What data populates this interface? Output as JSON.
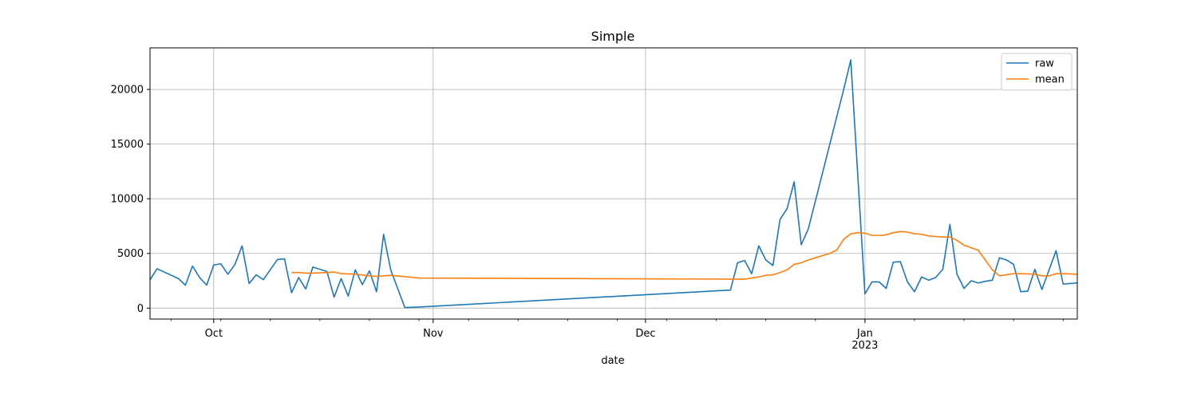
{
  "chart_data": {
    "type": "line",
    "title": "Simple",
    "xlabel": "date",
    "ylabel": "",
    "xlim": [
      "2022-09-22",
      "2023-01-31"
    ],
    "ylim": [
      -1000,
      23800
    ],
    "grid": true,
    "legend_placement": "top-right",
    "x_major_ticks": [
      {
        "date": "2022-10-01",
        "label": "Oct",
        "sublabel": ""
      },
      {
        "date": "2022-11-01",
        "label": "Nov",
        "sublabel": ""
      },
      {
        "date": "2022-12-01",
        "label": "Dec",
        "sublabel": ""
      },
      {
        "date": "2023-01-01",
        "label": "Jan",
        "sublabel": "2023"
      }
    ],
    "y_ticks": [
      {
        "value": 0,
        "label": "0"
      },
      {
        "value": 5000,
        "label": "5000"
      },
      {
        "value": 10000,
        "label": "10000"
      },
      {
        "value": 15000,
        "label": "15000"
      },
      {
        "value": 20000,
        "label": "20000"
      }
    ],
    "series": [
      {
        "name": "raw",
        "color": "#1f77b4",
        "points": [
          [
            "2022-09-22",
            2600
          ],
          [
            "2022-09-23",
            3600
          ],
          [
            "2022-09-26",
            2700
          ],
          [
            "2022-09-27",
            2100
          ],
          [
            "2022-09-28",
            3850
          ],
          [
            "2022-09-29",
            2800
          ],
          [
            "2022-09-30",
            2100
          ],
          [
            "2022-10-01",
            3950
          ],
          [
            "2022-10-02",
            4050
          ],
          [
            "2022-10-03",
            3100
          ],
          [
            "2022-10-04",
            4000
          ],
          [
            "2022-10-05",
            5700
          ],
          [
            "2022-10-06",
            2250
          ],
          [
            "2022-10-07",
            3050
          ],
          [
            "2022-10-08",
            2600
          ],
          [
            "2022-10-10",
            4450
          ],
          [
            "2022-10-11",
            4500
          ],
          [
            "2022-10-12",
            1400
          ],
          [
            "2022-10-13",
            2800
          ],
          [
            "2022-10-14",
            1750
          ],
          [
            "2022-10-15",
            3750
          ],
          [
            "2022-10-17",
            3350
          ],
          [
            "2022-10-18",
            1000
          ],
          [
            "2022-10-19",
            2700
          ],
          [
            "2022-10-20",
            1100
          ],
          [
            "2022-10-21",
            3500
          ],
          [
            "2022-10-22",
            2150
          ],
          [
            "2022-10-23",
            3400
          ],
          [
            "2022-10-24",
            1500
          ],
          [
            "2022-10-25",
            6750
          ],
          [
            "2022-10-26",
            3500
          ],
          [
            "2022-10-28",
            50
          ],
          [
            "2022-10-30",
            100
          ],
          [
            "2022-12-13",
            1650
          ],
          [
            "2022-12-14",
            4150
          ],
          [
            "2022-12-15",
            4350
          ],
          [
            "2022-12-16",
            3150
          ],
          [
            "2022-12-17",
            5700
          ],
          [
            "2022-12-18",
            4400
          ],
          [
            "2022-12-19",
            3900
          ],
          [
            "2022-12-20",
            8100
          ],
          [
            "2022-12-21",
            9100
          ],
          [
            "2022-12-22",
            11550
          ],
          [
            "2022-12-23",
            5800
          ],
          [
            "2022-12-24",
            7250
          ],
          [
            "2022-12-29",
            20000
          ],
          [
            "2022-12-30",
            22700
          ],
          [
            "2023-01-01",
            1300
          ],
          [
            "2023-01-02",
            2400
          ],
          [
            "2023-01-03",
            2400
          ],
          [
            "2023-01-04",
            1800
          ],
          [
            "2023-01-05",
            4200
          ],
          [
            "2023-01-06",
            4250
          ],
          [
            "2023-01-07",
            2400
          ],
          [
            "2023-01-08",
            1500
          ],
          [
            "2023-01-09",
            2850
          ],
          [
            "2023-01-10",
            2550
          ],
          [
            "2023-01-11",
            2800
          ],
          [
            "2023-01-12",
            3550
          ],
          [
            "2023-01-13",
            7650
          ],
          [
            "2023-01-14",
            3100
          ],
          [
            "2023-01-15",
            1800
          ],
          [
            "2023-01-16",
            2500
          ],
          [
            "2023-01-17",
            2300
          ],
          [
            "2023-01-18",
            2450
          ],
          [
            "2023-01-19",
            2550
          ],
          [
            "2023-01-20",
            4600
          ],
          [
            "2023-01-21",
            4400
          ],
          [
            "2023-01-22",
            4000
          ],
          [
            "2023-01-23",
            1500
          ],
          [
            "2023-01-24",
            1550
          ],
          [
            "2023-01-25",
            3550
          ],
          [
            "2023-01-26",
            1700
          ],
          [
            "2023-01-28",
            5250
          ],
          [
            "2023-01-29",
            2200
          ],
          [
            "2023-01-30",
            2250
          ],
          [
            "2023-01-31",
            2300
          ]
        ]
      },
      {
        "name": "mean",
        "color": "#ff7f0e",
        "points": [
          [
            "2022-10-12",
            3250
          ],
          [
            "2022-10-13",
            3250
          ],
          [
            "2022-10-14",
            3200
          ],
          [
            "2022-10-15",
            3200
          ],
          [
            "2022-10-17",
            3250
          ],
          [
            "2022-10-18",
            3300
          ],
          [
            "2022-10-19",
            3150
          ],
          [
            "2022-10-21",
            3100
          ],
          [
            "2022-10-23",
            2950
          ],
          [
            "2022-10-24",
            2900
          ],
          [
            "2022-10-25",
            2950
          ],
          [
            "2022-10-26",
            3000
          ],
          [
            "2022-10-30",
            2750
          ],
          [
            "2022-12-13",
            2650
          ],
          [
            "2022-12-15",
            2650
          ],
          [
            "2022-12-16",
            2750
          ],
          [
            "2022-12-17",
            2850
          ],
          [
            "2022-12-18",
            3000
          ],
          [
            "2022-12-19",
            3050
          ],
          [
            "2022-12-20",
            3250
          ],
          [
            "2022-12-21",
            3500
          ],
          [
            "2022-12-22",
            4000
          ],
          [
            "2022-12-23",
            4150
          ],
          [
            "2022-12-24",
            4400
          ],
          [
            "2022-12-27",
            5000
          ],
          [
            "2022-12-28",
            5300
          ],
          [
            "2022-12-29",
            6300
          ],
          [
            "2022-12-30",
            6800
          ],
          [
            "2022-12-31",
            6900
          ],
          [
            "2023-01-01",
            6850
          ],
          [
            "2023-01-02",
            6650
          ],
          [
            "2023-01-03",
            6650
          ],
          [
            "2023-01-04",
            6700
          ],
          [
            "2023-01-05",
            6900
          ],
          [
            "2023-01-06",
            7000
          ],
          [
            "2023-01-07",
            6950
          ],
          [
            "2023-01-08",
            6800
          ],
          [
            "2023-01-09",
            6750
          ],
          [
            "2023-01-10",
            6600
          ],
          [
            "2023-01-11",
            6550
          ],
          [
            "2023-01-12",
            6500
          ],
          [
            "2023-01-13",
            6500
          ],
          [
            "2023-01-14",
            6200
          ],
          [
            "2023-01-15",
            5750
          ],
          [
            "2023-01-17",
            5300
          ],
          [
            "2023-01-19",
            3500
          ],
          [
            "2023-01-20",
            2950
          ],
          [
            "2023-01-22",
            3150
          ],
          [
            "2023-01-23",
            3150
          ],
          [
            "2023-01-25",
            3100
          ],
          [
            "2023-01-26",
            2950
          ],
          [
            "2023-01-27",
            2950
          ],
          [
            "2023-01-28",
            3150
          ],
          [
            "2023-01-29",
            3150
          ],
          [
            "2023-01-31",
            3100
          ]
        ]
      }
    ]
  }
}
